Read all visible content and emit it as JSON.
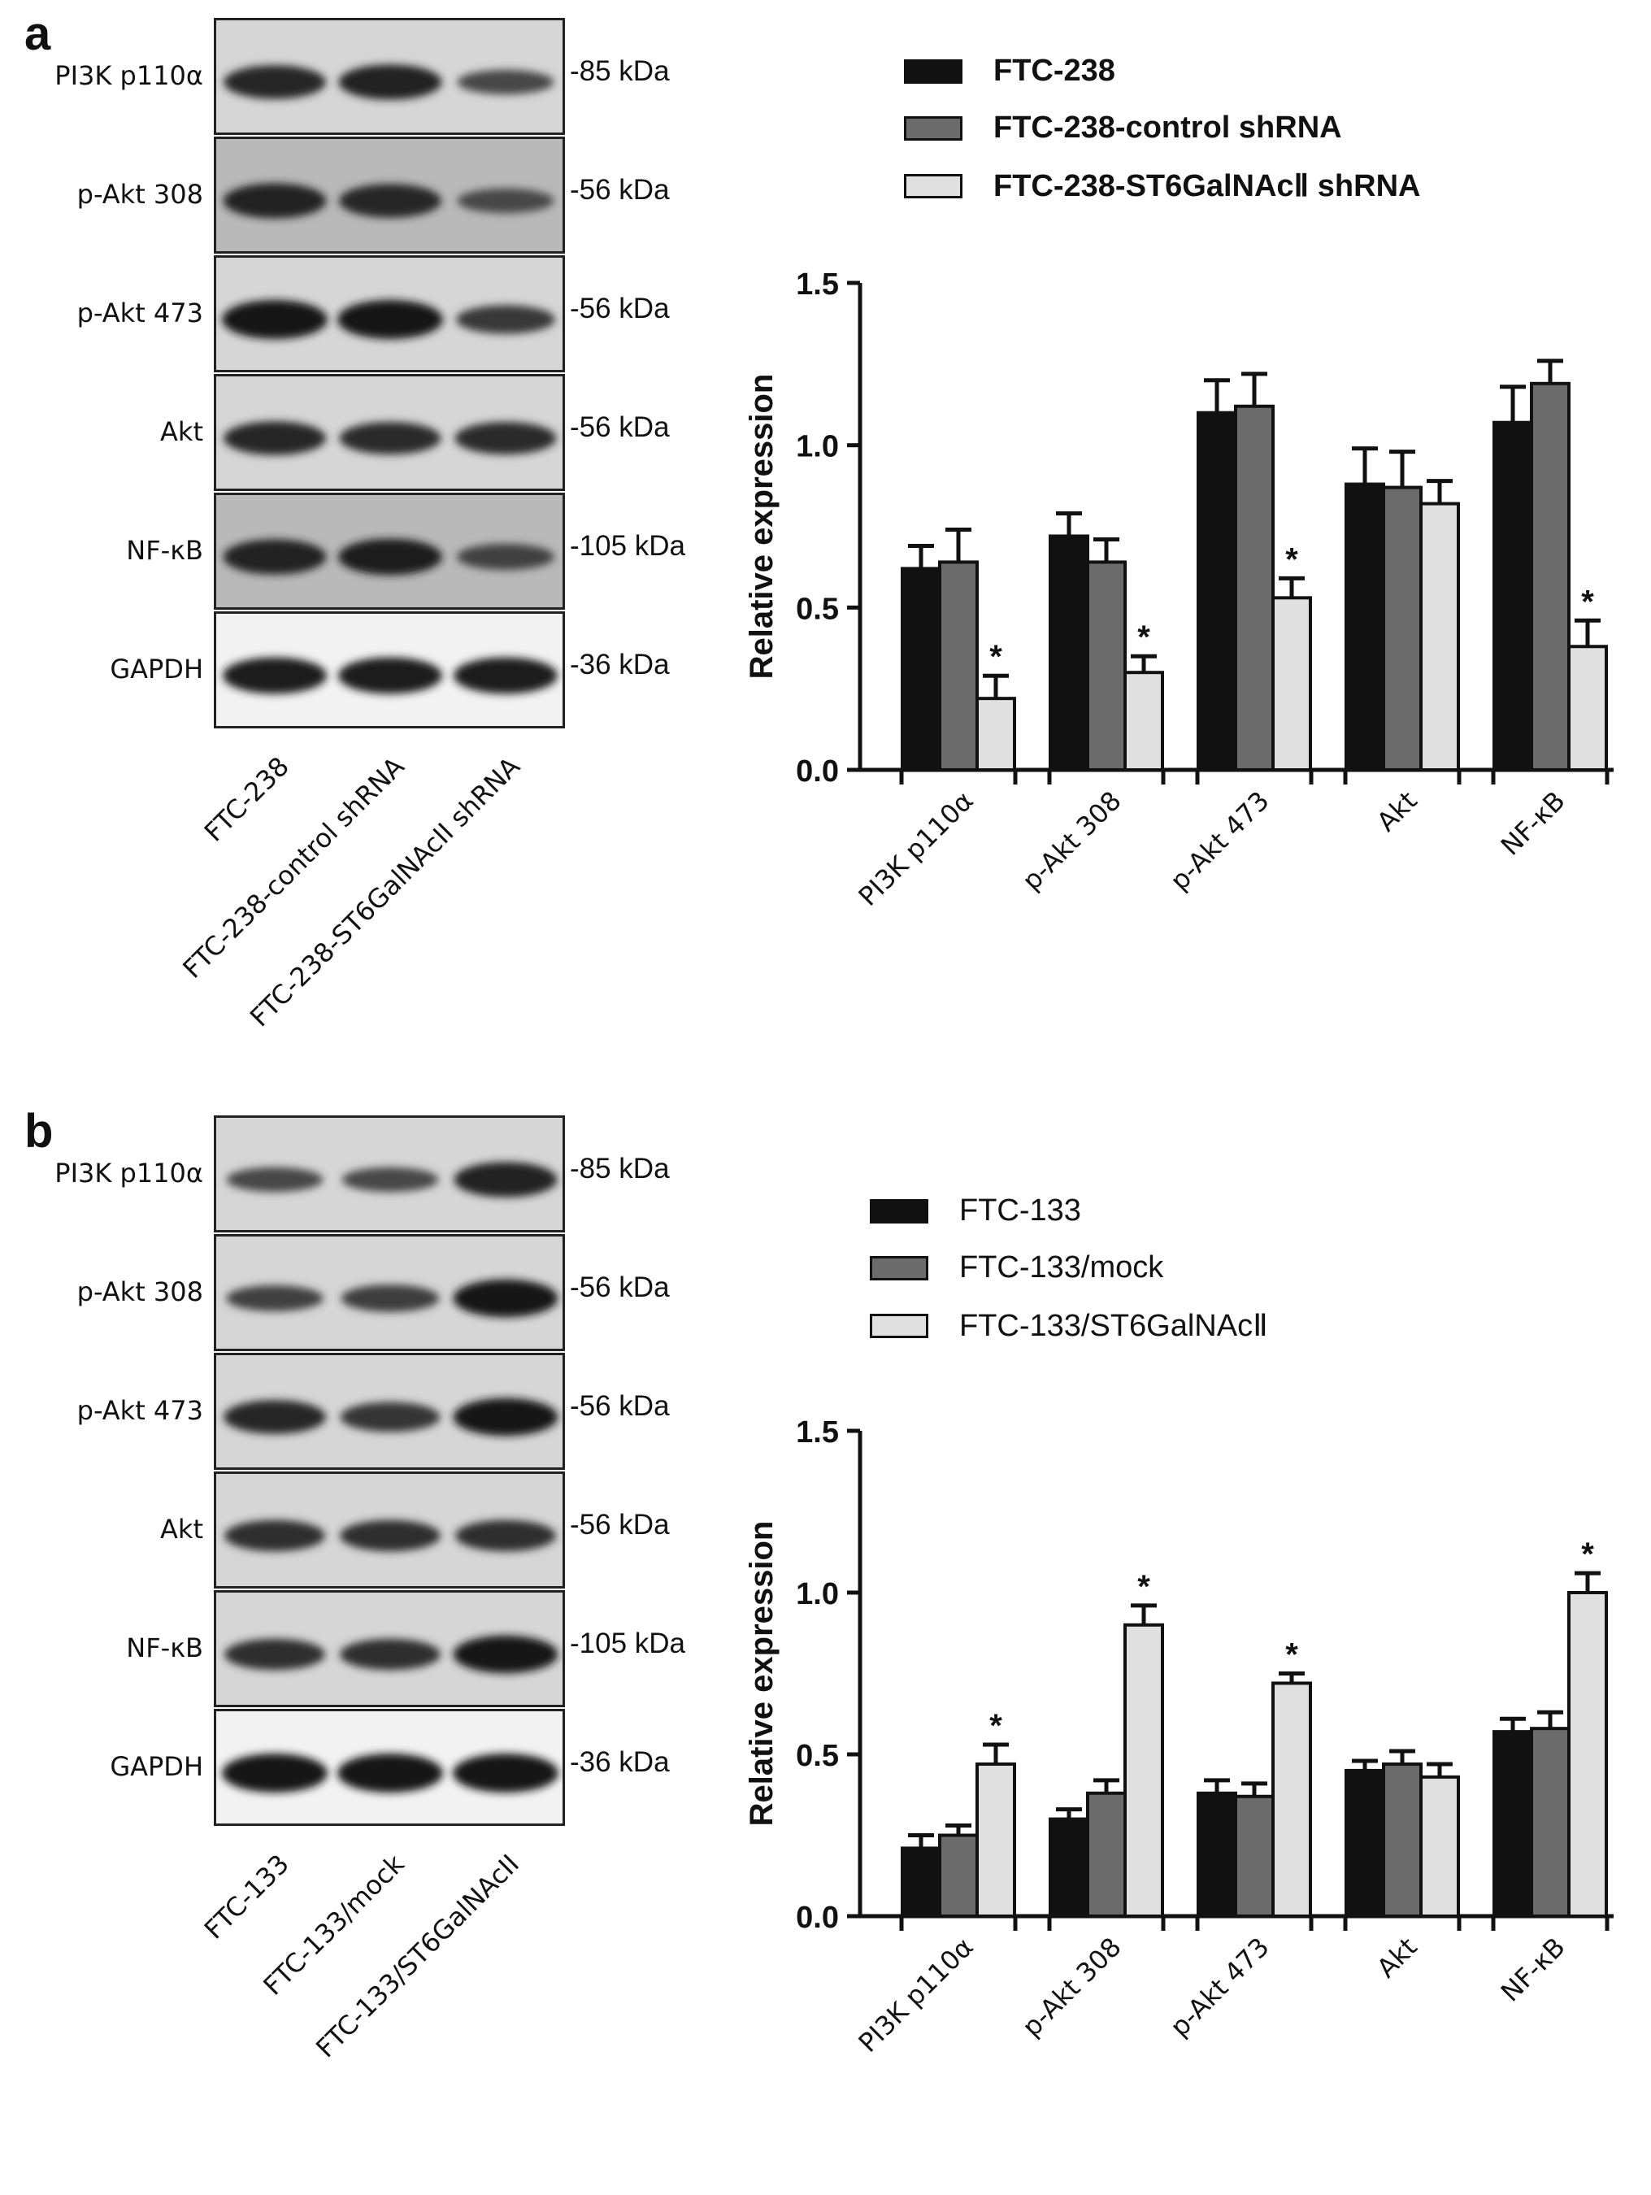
{
  "panels": [
    {
      "letter": "a",
      "blot": {
        "proteins": [
          "PI3K p110α",
          "p-Akt 308",
          "p-Akt 473",
          "Akt",
          "NF-κB",
          "GAPDH"
        ],
        "kda": [
          "85 kDa",
          "-56 kDa",
          "-56 kDa",
          "-56 kDa",
          "-105 kDa",
          "-36 kDa"
        ],
        "lanes": [
          "FTC-238",
          "FTC-238-control shRNA",
          "FTC-238-ST6GalNAcII shRNA"
        ],
        "band_intensity": [
          [
            0.8,
            0.85,
            0.45
          ],
          [
            0.85,
            0.8,
            0.45
          ],
          [
            1.0,
            1.0,
            0.6
          ],
          [
            0.8,
            0.75,
            0.75
          ],
          [
            0.85,
            0.9,
            0.5
          ],
          [
            0.9,
            0.9,
            0.9
          ]
        ]
      },
      "chart_data": {
        "type": "bar",
        "categories": [
          "PI3K p110α",
          "p-Akt 308",
          "p-Akt 473",
          "Akt",
          "NF-κB"
        ],
        "series": [
          {
            "name": "FTC-238",
            "color": "#111111",
            "values": [
              0.62,
              0.72,
              1.1,
              0.88,
              1.07
            ],
            "errors": [
              0.07,
              0.07,
              0.1,
              0.11,
              0.11
            ]
          },
          {
            "name": "FTC-238-control shRNA",
            "color": "#6b6b6b",
            "values": [
              0.64,
              0.64,
              1.12,
              0.87,
              1.19
            ],
            "errors": [
              0.1,
              0.07,
              0.1,
              0.11,
              0.07
            ]
          },
          {
            "name": "FTC-238-ST6GalNAcⅡ shRNA",
            "color": "#e0e0e0",
            "values": [
              0.22,
              0.3,
              0.53,
              0.82,
              0.38
            ],
            "errors": [
              0.07,
              0.05,
              0.06,
              0.07,
              0.08
            ]
          }
        ],
        "significant": [
          2,
          2,
          2,
          -1,
          2
        ],
        "ylabel": "Relative expression",
        "ylim": [
          0,
          1.5
        ],
        "yticks": [
          "0.0",
          "0.5",
          "1.0",
          "1.5"
        ],
        "legend_bold": true
      }
    },
    {
      "letter": "b",
      "blot": {
        "proteins": [
          "PI3K p110α",
          "p-Akt 308",
          "p-Akt 473",
          "Akt",
          "NF-κB",
          "GAPDH"
        ],
        "kda": [
          "85 kDa",
          "-56 kDa",
          "-56 kDa",
          "-56 kDa",
          "-105 kDa",
          "-36 kDa"
        ],
        "lanes": [
          "FTC-133",
          "FTC-133/mock",
          "FTC-133/ST6GalNAcII"
        ],
        "band_intensity": [
          [
            0.45,
            0.45,
            0.85
          ],
          [
            0.5,
            0.55,
            0.95
          ],
          [
            0.8,
            0.65,
            0.95
          ],
          [
            0.7,
            0.7,
            0.7
          ],
          [
            0.7,
            0.7,
            0.95
          ],
          [
            1.0,
            1.0,
            1.0
          ]
        ]
      },
      "chart_data": {
        "type": "bar",
        "categories": [
          "PI3K p110α",
          "p-Akt 308",
          "p-Akt 473",
          "Akt",
          "NF-κB"
        ],
        "series": [
          {
            "name": "FTC-133",
            "color": "#111111",
            "values": [
              0.21,
              0.3,
              0.38,
              0.45,
              0.57
            ],
            "errors": [
              0.04,
              0.03,
              0.04,
              0.03,
              0.04
            ]
          },
          {
            "name": "FTC-133/mock",
            "color": "#6b6b6b",
            "values": [
              0.25,
              0.38,
              0.37,
              0.47,
              0.58
            ],
            "errors": [
              0.03,
              0.04,
              0.04,
              0.04,
              0.05
            ]
          },
          {
            "name": "FTC-133/ST6GalNAcⅡ",
            "color": "#e0e0e0",
            "values": [
              0.47,
              0.9,
              0.72,
              0.43,
              1.0
            ],
            "errors": [
              0.06,
              0.06,
              0.03,
              0.04,
              0.06
            ]
          }
        ],
        "significant": [
          2,
          2,
          2,
          -1,
          2
        ],
        "ylabel": "Relative expression",
        "ylim": [
          0,
          1.5
        ],
        "yticks": [
          "0.0",
          "0.5",
          "1.0",
          "1.5"
        ],
        "legend_bold": false
      }
    }
  ],
  "star_symbol": "*"
}
